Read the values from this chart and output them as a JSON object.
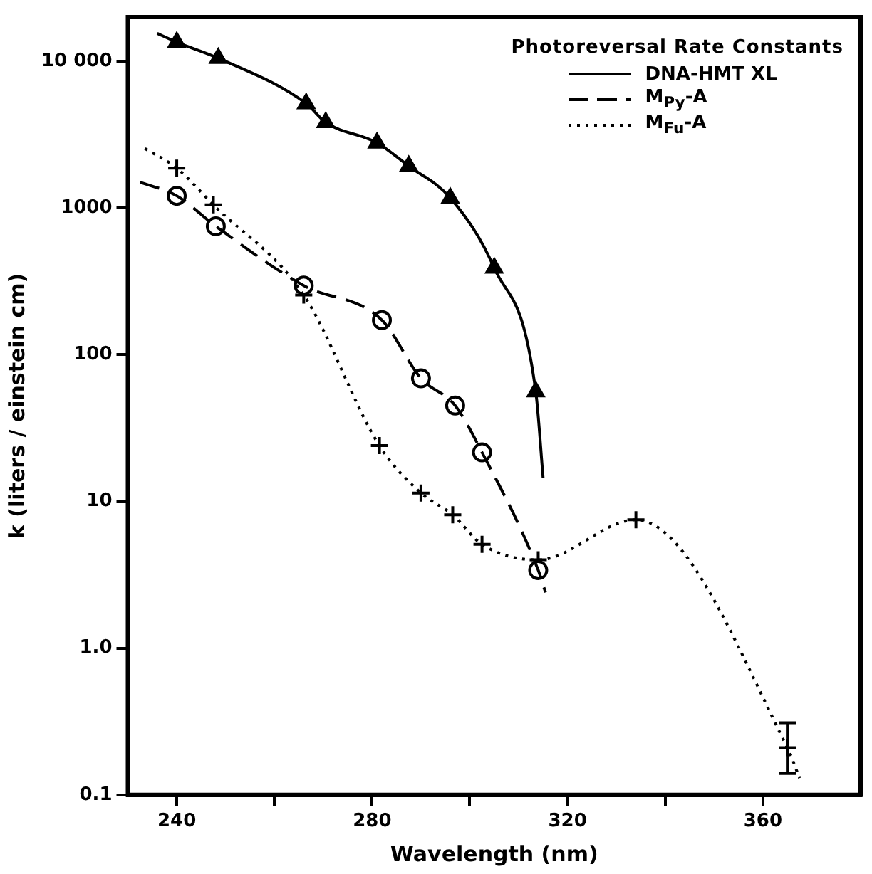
{
  "chart_data": {
    "type": "line",
    "xlabel": "Wavelength (nm)",
    "ylabel": "k (liters / einstein cm)",
    "legend_title": "Photoreversal Rate Constants",
    "legend": "top right",
    "grid": false,
    "log": "y",
    "xlim": [
      230,
      380
    ],
    "xticks": [
      240,
      {
        "value": 260,
        "label": null
      },
      280,
      {
        "value": 300,
        "label": null
      },
      320,
      {
        "value": 340,
        "label": null
      },
      360
    ],
    "ylim": [
      0.1,
      20000
    ],
    "yticks": [
      0.1,
      {
        "value": 1,
        "label": "1.0"
      },
      10,
      100,
      1000,
      {
        "value": 10000,
        "label": "10 000"
      }
    ],
    "series": [
      {
        "name": "DNA-HMT XL",
        "type": "line",
        "color": "#000000",
        "line_style": "solid",
        "marker": "none",
        "x": [
          236,
          240,
          248.5,
          266.5,
          270.5,
          281,
          287.5,
          296,
          305,
          313.5,
          315
        ],
        "values": [
          15500,
          13500,
          10500,
          5150,
          3830,
          2780,
          1930,
          1170,
          390,
          56,
          14.5
        ]
      },
      {
        "name": "M$_{Py}$-A",
        "type": "line",
        "color": "#000000",
        "line_style": "dashed",
        "marker": "none",
        "x": [
          232.5,
          240,
          248,
          266,
          282,
          290,
          297,
          302.5,
          314,
          315.5
        ],
        "values": [
          1500,
          1210,
          750,
          296,
          172,
          69,
          45,
          21.6,
          3.4,
          2.4
        ]
      },
      {
        "name": "M$_{Fu}$-A",
        "type": "line",
        "color": "#000000",
        "line_style": "dotted",
        "marker": "none",
        "x": [
          233.5,
          240,
          247.5,
          266,
          281.5,
          290,
          296.5,
          302.5,
          314,
          334,
          365,
          367.5
        ],
        "values": [
          2540,
          1870,
          1050,
          255,
          24,
          11.4,
          8.1,
          5.1,
          4.0,
          7.5,
          0.21,
          0.13
        ]
      },
      {
        "type": "scatter",
        "color": "#000000",
        "marker": "triangle",
        "x": [
          240,
          248.5,
          266.5,
          270.5,
          281,
          287.5,
          296,
          305,
          313.5
        ],
        "values": [
          13500,
          10500,
          5150,
          3830,
          2780,
          1930,
          1170,
          390,
          56
        ]
      },
      {
        "type": "scatter",
        "color": "#000000",
        "marker": "circle",
        "x": [
          240,
          248,
          266,
          282,
          290,
          297,
          302.5,
          314
        ],
        "values": [
          1210,
          750,
          296,
          172,
          69,
          45,
          21.6,
          3.4
        ]
      },
      {
        "type": "scatter",
        "color": "#000000",
        "marker": "cross",
        "x": [
          240,
          247.5,
          266,
          281.5,
          290,
          296.5,
          302.5,
          314,
          334,
          365
        ],
        "values": [
          1870,
          1050,
          255,
          24,
          11.4,
          8.1,
          5.1,
          4.0,
          7.5,
          0.21
        ],
        "errors": [
          null,
          null,
          null,
          null,
          null,
          null,
          null,
          null,
          null,
          [
            0.14,
            0.31
          ]
        ]
      }
    ]
  }
}
